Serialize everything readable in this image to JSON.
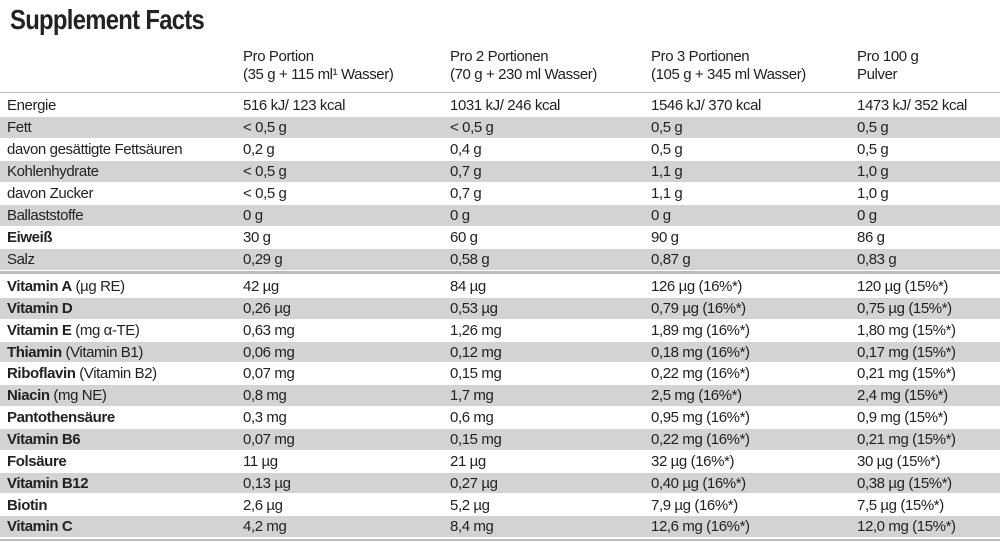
{
  "title": "Supplement Facts",
  "header": {
    "columns": [
      [
        "Pro Portion",
        "(35 g + 115 ml¹ Wasser)"
      ],
      [
        "Pro 2 Portionen",
        "(70 g + 230 ml Wasser)"
      ],
      [
        "Pro 3 Portionen",
        "(105 g + 345 ml Wasser)"
      ],
      [
        "Pro 100 g",
        "Pulver"
      ]
    ]
  },
  "nutrition": {
    "rows": [
      {
        "label": "Energie",
        "values": [
          "516 kJ/ 123 kcal",
          "1031 kJ/ 246 kcal",
          "1546 kJ/ 370 kcal",
          "1473 kJ/ 352 kcal"
        ]
      },
      {
        "label": "Fett",
        "values": [
          "< 0,5 g",
          "< 0,5 g",
          "0,5 g",
          "0,5 g"
        ]
      },
      {
        "label": "davon gesättigte Fettsäuren",
        "values": [
          "0,2 g",
          "0,4 g",
          "0,5 g",
          "0,5 g"
        ]
      },
      {
        "label": "Kohlenhydrate",
        "values": [
          "< 0,5 g",
          "0,7 g",
          "1,1 g",
          "1,0 g"
        ]
      },
      {
        "label": "davon Zucker",
        "values": [
          "< 0,5 g",
          "0,7 g",
          "1,1 g",
          "1,0 g"
        ]
      },
      {
        "label": "Ballaststoffe",
        "values": [
          "0 g",
          "0 g",
          "0 g",
          "0 g"
        ]
      },
      {
        "label": "Eiweiß",
        "bold": true,
        "values": [
          "30 g",
          "60 g",
          "90 g",
          "86 g"
        ]
      },
      {
        "label": "Salz",
        "values": [
          "0,29 g",
          "0,58 g",
          "0,87 g",
          "0,83 g"
        ]
      }
    ]
  },
  "vitamins": {
    "rows": [
      {
        "name": "Vitamin A",
        "note": "(µg RE)",
        "values": [
          "42 µg",
          "84 µg",
          "126 µg (16%*)",
          "120 µg (15%*)"
        ]
      },
      {
        "name": "Vitamin D",
        "values": [
          "0,26 µg",
          "0,53 µg",
          "0,79 µg (16%*)",
          "0,75 µg (15%*)"
        ]
      },
      {
        "name": "Vitamin E",
        "note": "(mg α-TE)",
        "values": [
          "0,63 mg",
          "1,26 mg",
          "1,89 mg (16%*)",
          "1,80 mg (15%*)"
        ]
      },
      {
        "name": "Thiamin",
        "note": "(Vitamin B1)",
        "values": [
          "0,06 mg",
          "0,12 mg",
          "0,18 mg (16%*)",
          "0,17 mg (15%*)"
        ]
      },
      {
        "name": "Riboflavin",
        "note": "(Vitamin B2)",
        "values": [
          "0,07 mg",
          "0,15 mg",
          "0,22 mg (16%*)",
          "0,21 mg (15%*)"
        ]
      },
      {
        "name": "Niacin",
        "note": "(mg NE)",
        "values": [
          "0,8 mg",
          "1,7 mg",
          "2,5 mg (16%*)",
          "2,4 mg (15%*)"
        ]
      },
      {
        "name": "Pantothensäure",
        "values": [
          "0,3 mg",
          "0,6 mg",
          "0,95 mg (16%*)",
          "0,9 mg (15%*)"
        ]
      },
      {
        "name": "Vitamin B6",
        "values": [
          "0,07 mg",
          "0,15 mg",
          "0,22 mg (16%*)",
          "0,21 mg (15%*)"
        ]
      },
      {
        "name": "Folsäure",
        "values": [
          "11 µg",
          "21 µg",
          "32 µg (16%*)",
          "30 µg (15%*)"
        ]
      },
      {
        "name": "Vitamin B12",
        "values": [
          "0,13 µg",
          "0,27 µg",
          "0,40 µg (16%*)",
          "0,38 µg (15%*)"
        ]
      },
      {
        "name": "Biotin",
        "values": [
          "2,6 µg",
          "5,2 µg",
          "7,9 µg (16%*)",
          "7,5 µg (15%*)"
        ]
      },
      {
        "name": "Vitamin C",
        "values": [
          "4,2 mg",
          "8,4 mg",
          "12,6 mg (16%*)",
          "12,0 mg (15%*)"
        ]
      }
    ]
  }
}
